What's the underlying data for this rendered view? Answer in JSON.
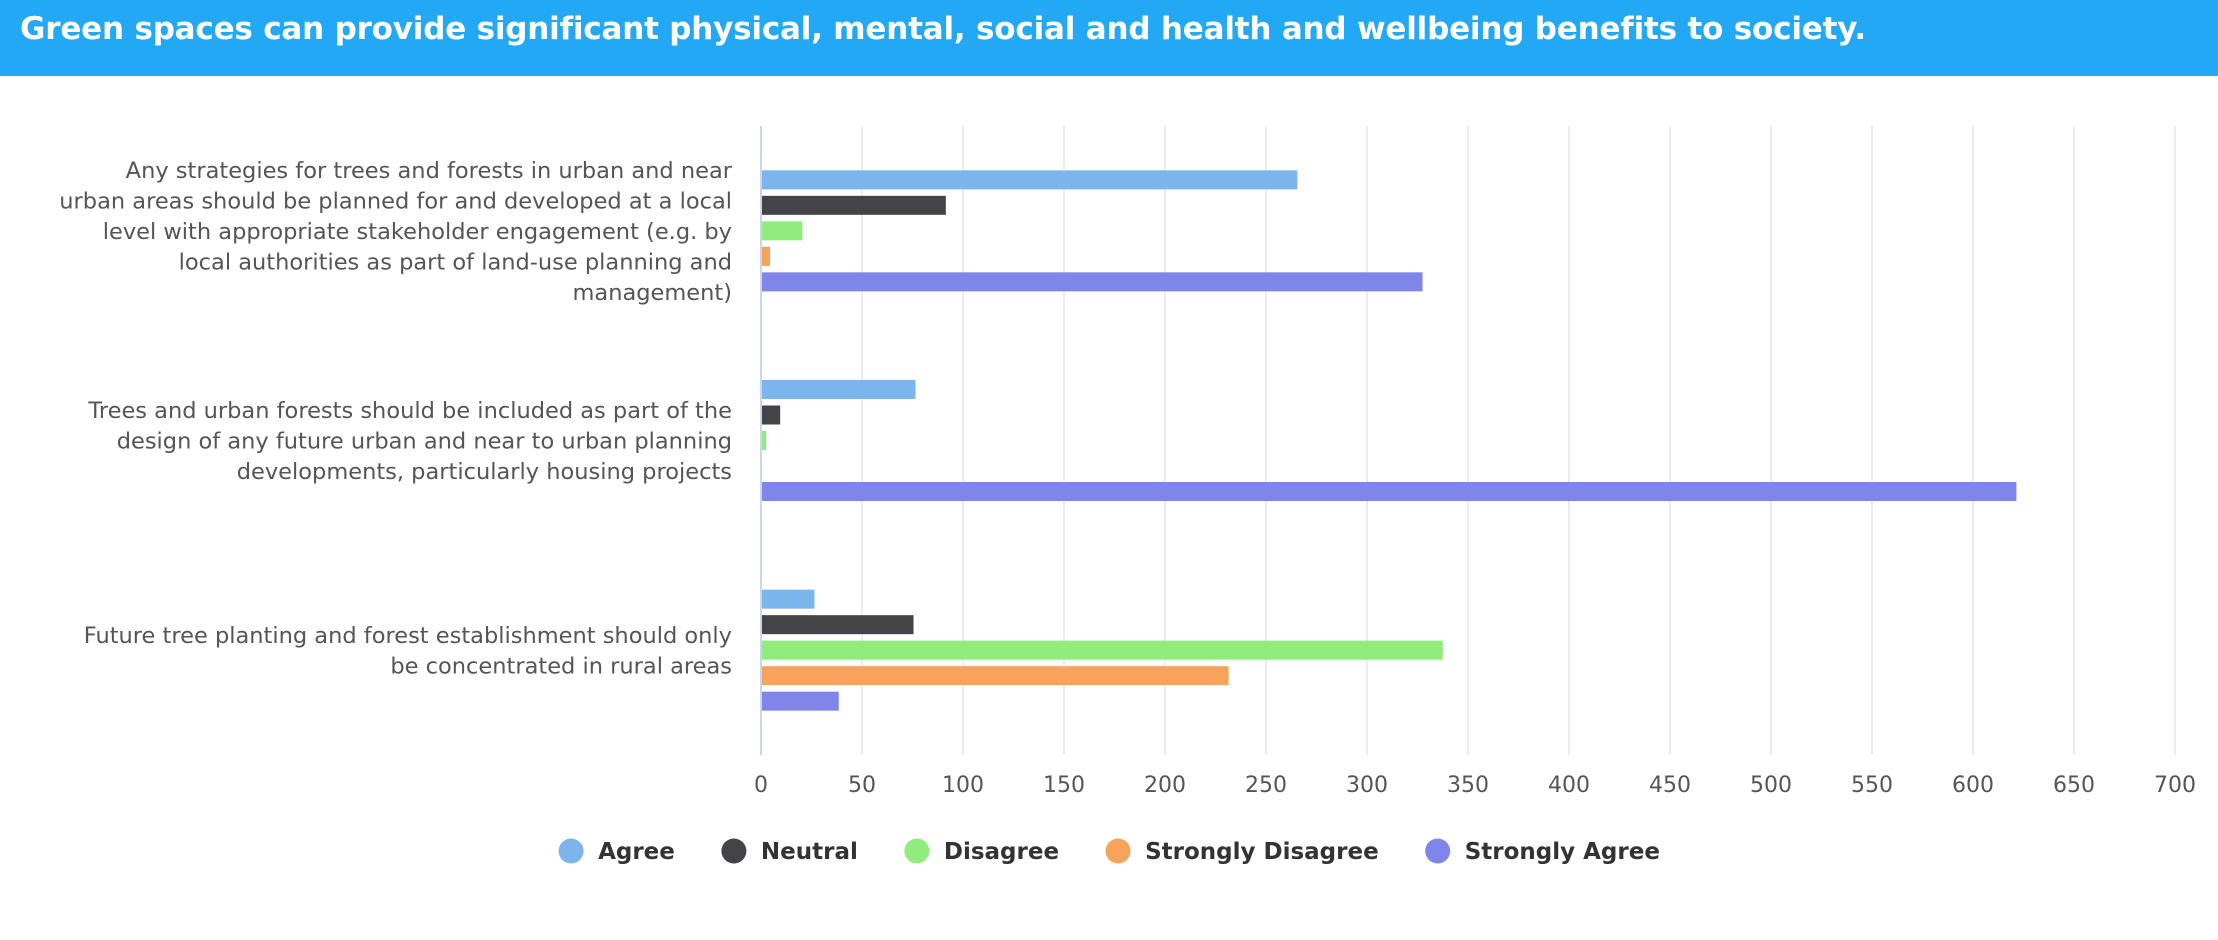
{
  "header": {
    "title": "Green spaces can provide significant physical, mental, social and health and wellbeing benefits to society."
  },
  "chart_data": {
    "type": "bar",
    "orientation": "horizontal",
    "title": "",
    "xlabel": "",
    "ylabel": "",
    "xlim": [
      0,
      700
    ],
    "xticks": [
      0,
      50,
      100,
      150,
      200,
      250,
      300,
      350,
      400,
      450,
      500,
      550,
      600,
      650,
      700
    ],
    "grid": true,
    "legend_position": "bottom-center",
    "categories": [
      {
        "label": "Any strategies for trees and forests in urban and near urban areas should be planned for and developed at a local level with appropriate stakeholder engagement (e.g. by local authorities as part of land-use planning and management)",
        "lines": [
          "Any strategies for trees and forests in urban and near",
          "urban areas should be planned for and developed at a local",
          "level with appropriate stakeholder engagement (e.g. by",
          "local authorities as part of land-use planning and",
          "management)"
        ]
      },
      {
        "label": "Trees and urban forests should be included as part of the design of any future urban and near to urban planning developments, particularly housing projects",
        "lines": [
          "Trees and urban forests should be included as part of the",
          "design of any future urban and near to urban planning",
          "developments, particularly housing projects"
        ]
      },
      {
        "label": "Future tree planting and forest establishment should only be concentrated in rural areas",
        "lines": [
          "Future tree planting and forest establishment should only",
          "be concentrated in rural areas"
        ]
      }
    ],
    "series": [
      {
        "name": "Agree",
        "color": "#7cb5ec",
        "values": [
          265,
          76,
          26
        ]
      },
      {
        "name": "Neutral",
        "color": "#434348",
        "values": [
          91,
          9,
          75
        ]
      },
      {
        "name": "Disagree",
        "color": "#90ed7d",
        "values": [
          20,
          2,
          337
        ]
      },
      {
        "name": "Strongly Disagree",
        "color": "#f7a35c",
        "values": [
          4,
          0,
          231
        ]
      },
      {
        "name": "Strongly Agree",
        "color": "#8085e9",
        "values": [
          327,
          621,
          38
        ]
      }
    ]
  }
}
